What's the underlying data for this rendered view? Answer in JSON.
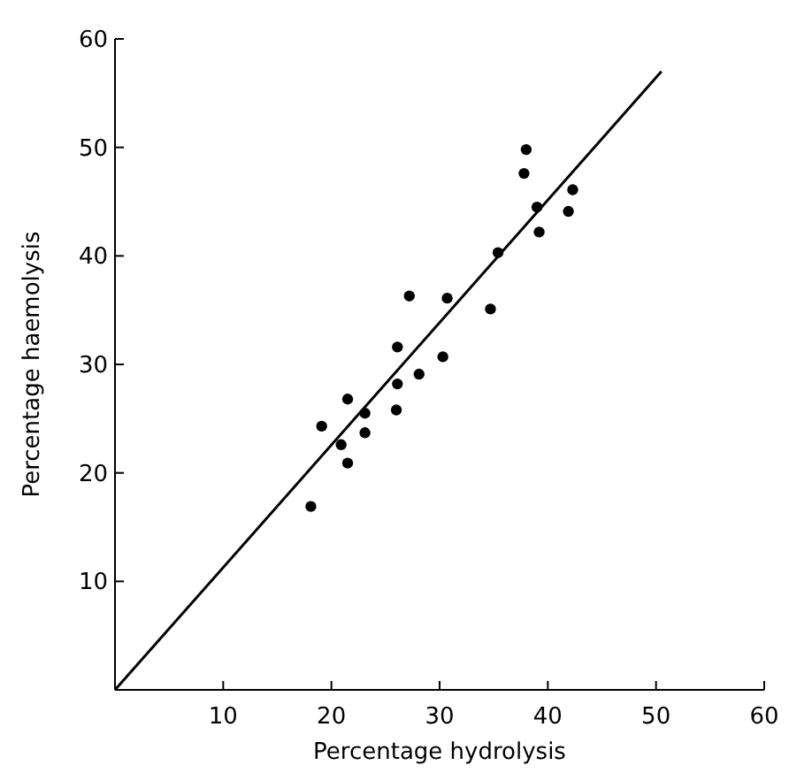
{
  "chart_data": {
    "type": "scatter",
    "xlabel": "Percentage hydrolysis",
    "ylabel": "Percentage haemolysis",
    "xlim": [
      0,
      60
    ],
    "ylim": [
      0,
      60
    ],
    "xticks": [
      10,
      20,
      30,
      40,
      50,
      60
    ],
    "yticks": [
      10,
      20,
      30,
      40,
      50,
      60
    ],
    "grid": false,
    "marker": "circle",
    "series": [
      {
        "color": "#000000",
        "x": [
          18.1,
          19.1,
          20.9,
          21.5,
          21.5,
          23.1,
          23.1,
          26.0,
          26.1,
          26.1,
          27.2,
          28.1,
          30.3,
          30.7,
          34.7,
          35.4,
          37.8,
          38.0,
          39.0,
          39.2,
          41.9,
          42.3
        ],
        "values": [
          16.9,
          24.3,
          22.6,
          26.8,
          20.9,
          25.5,
          23.7,
          25.8,
          31.6,
          28.2,
          36.3,
          29.1,
          30.7,
          36.1,
          35.1,
          40.3,
          47.6,
          49.8,
          44.5,
          42.2,
          44.1,
          46.1
        ]
      },
      {
        "type": "line",
        "color": "#000000",
        "marker": "none",
        "line_style": "solid",
        "x": [
          0,
          50.5
        ],
        "values": [
          0,
          57
        ]
      }
    ]
  }
}
